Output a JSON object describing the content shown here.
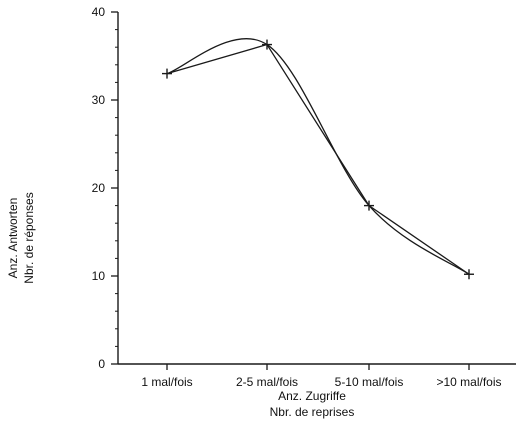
{
  "chart_data": {
    "type": "line",
    "categories": [
      "1 mal/fois",
      "2-5 mal/fois",
      "5-10 mal/fois",
      ">10 mal/fois"
    ],
    "series": [
      {
        "values": [
          33,
          36.3,
          18,
          10.2
        ]
      },
      {
        "values": [
          33,
          36.3,
          18,
          10.2
        ]
      }
    ],
    "ylim": [
      0,
      40
    ],
    "yticks": [
      0,
      10,
      20,
      30,
      40
    ],
    "ytick_labels": [
      "0",
      "10",
      "20",
      "30",
      "40"
    ],
    "ylabel_lines": [
      "Anz. Antworten",
      "Nbr. de réponses"
    ],
    "xlabel_lines": [
      "Anz. Zugriffe",
      "Nbr. de reprises"
    ],
    "marker": "plus",
    "colors": {
      "line": "#1a1a1a",
      "axis": "#1a1a1a",
      "text": "#111111"
    },
    "grid": false,
    "legend": "none"
  }
}
